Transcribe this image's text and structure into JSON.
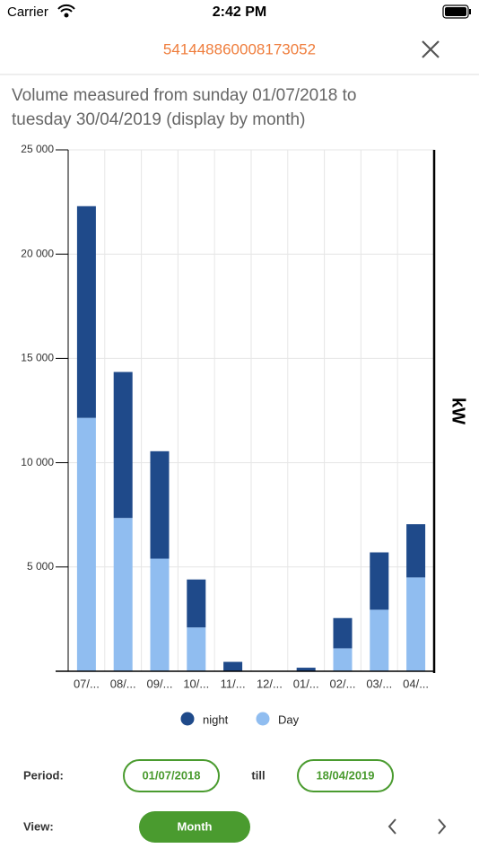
{
  "status_bar": {
    "carrier": "Carrier",
    "time": "2:42 PM"
  },
  "header": {
    "title": "541448860008173052"
  },
  "subtitle": {
    "lines": [
      "Volume measured from sunday 01/07/2018 to",
      "tuesday 30/04/2019 (display by month)"
    ]
  },
  "chart_data": {
    "type": "bar",
    "stacked": true,
    "categories": [
      "07/...",
      "08/...",
      "09/...",
      "10/...",
      "11/...",
      "12/...",
      "01/...",
      "02/...",
      "03/...",
      "04/..."
    ],
    "series": [
      {
        "name": "night",
        "color": "#1f4a8a",
        "values": [
          10150,
          7000,
          5150,
          2300,
          450,
          0,
          170,
          1450,
          2750,
          2550
        ]
      },
      {
        "name": "Day",
        "color": "#90bdf0",
        "values": [
          12150,
          7350,
          5400,
          2100,
          0,
          0,
          0,
          1100,
          2950,
          4500
        ]
      }
    ],
    "ylim": [
      0,
      25000
    ],
    "yticks": [
      {
        "value": 5000,
        "label": "5 000"
      },
      {
        "value": 10000,
        "label": "10 000"
      },
      {
        "value": 15000,
        "label": "15 000"
      },
      {
        "value": 20000,
        "label": "20 000"
      },
      {
        "value": 25000,
        "label": "25 000"
      }
    ],
    "y_label": "kW",
    "grid": true,
    "legend": "bottom"
  },
  "controls": {
    "period_label": "Period:",
    "start_date": "01/07/2018",
    "till": "till",
    "end_date": "18/04/2019",
    "view_label": "View:",
    "view_value": "Month"
  }
}
